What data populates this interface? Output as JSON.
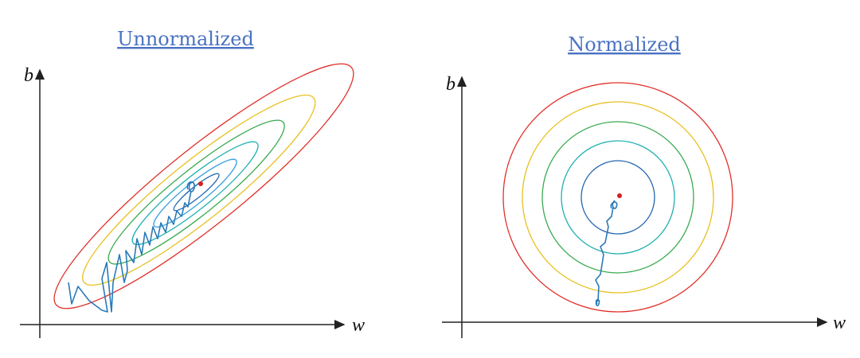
{
  "panels": [
    {
      "title": "Unnormalized",
      "y_label": "b",
      "x_label": "w"
    },
    {
      "title": "Normalized",
      "y_label": "b",
      "x_label": "w"
    }
  ]
}
